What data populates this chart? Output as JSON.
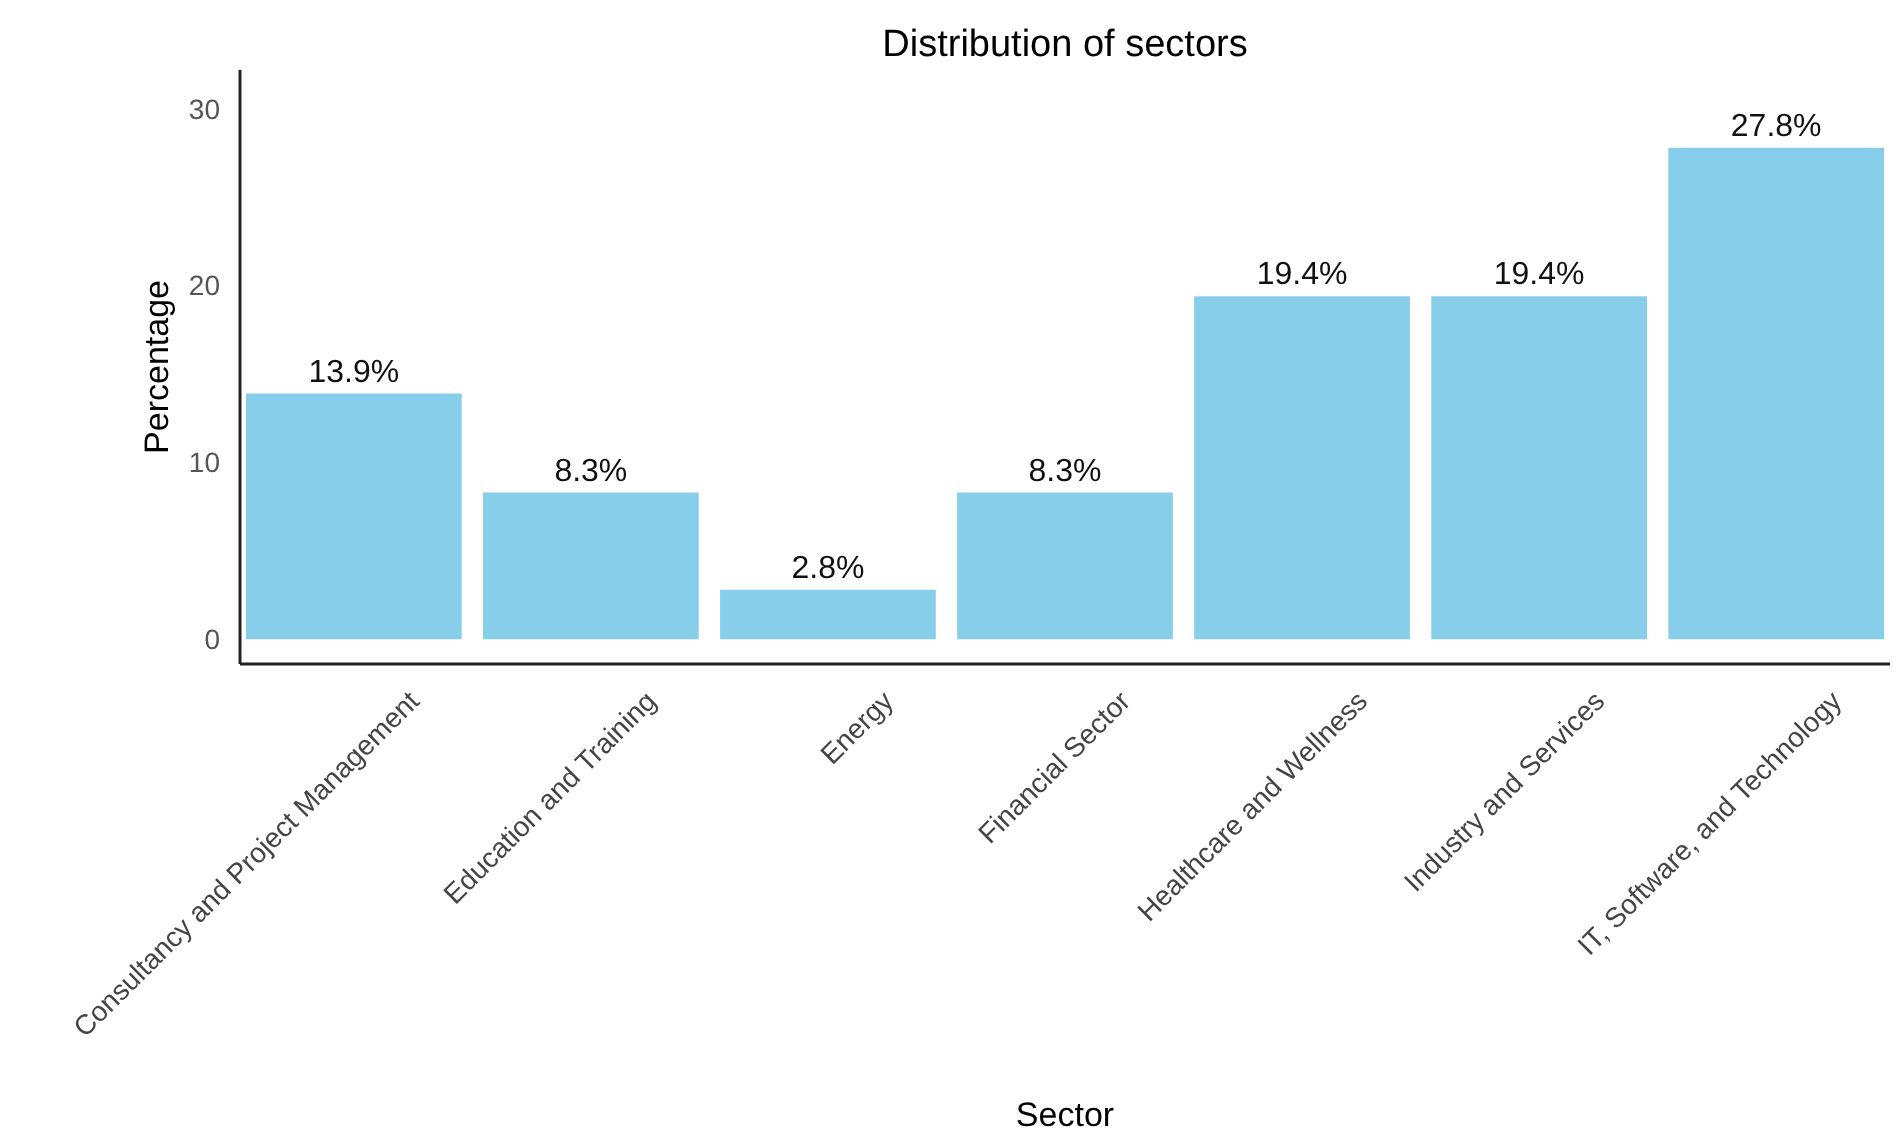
{
  "chart_data": {
    "type": "bar",
    "title": "Distribution of sectors",
    "xlabel": "Sector",
    "ylabel": "Percentage",
    "categories": [
      "Consultancy and Project Management",
      "Education and Training",
      "Energy",
      "Financial Sector",
      "Healthcare and Wellness",
      "Industry and Services",
      "IT, Software, and Technology"
    ],
    "values": [
      13.9,
      8.3,
      2.8,
      8.3,
      19.4,
      19.4,
      27.8
    ],
    "value_labels": [
      "13.9%",
      "8.3%",
      "2.8%",
      "8.3%",
      "19.4%",
      "19.4%",
      "27.8%"
    ],
    "color": "#87ceeb",
    "ylim": [
      -1.4,
      32.2
    ],
    "yticks": [
      0,
      10,
      20,
      30
    ],
    "grid": false
  }
}
